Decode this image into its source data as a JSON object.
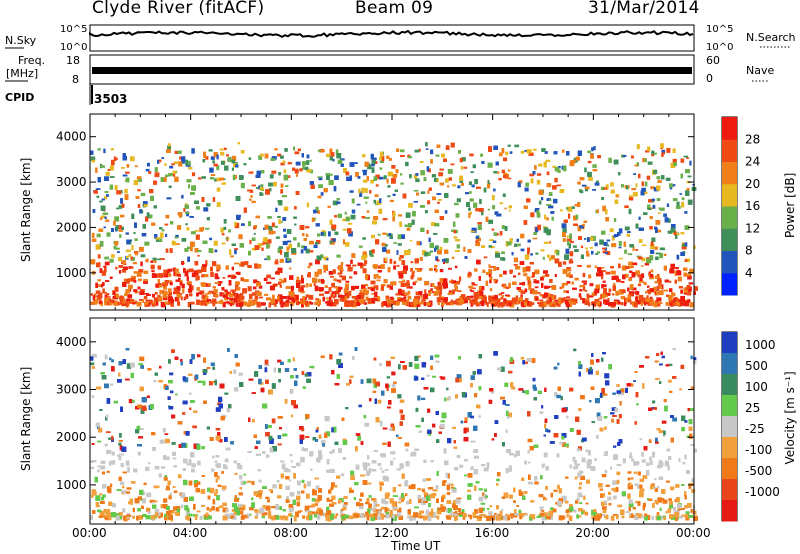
{
  "header": {
    "station": "Clyde River (fitACF)",
    "beam": "Beam 09",
    "date": "31/Mar/2014"
  },
  "top_panels": {
    "nsky_label": "N.Sky",
    "nsky_ticks": [
      "10^5",
      "10^0"
    ],
    "nsearch_label": "N.Search",
    "nsearch_ticks": [
      "10^5",
      "10^0"
    ],
    "freq_label_1": "Freq.",
    "freq_label_2": "[MHz]",
    "freq_ticks": [
      "18",
      "8"
    ],
    "nave_label": "Nave",
    "nave_ticks": [
      "60",
      "0"
    ],
    "cpid_label": "CPID",
    "cpid_value": "3503"
  },
  "chart_data": [
    {
      "type": "heatmap",
      "panel": "power",
      "ylabel": "Slant Range [km]",
      "y_ticks": [
        "1000",
        "2000",
        "3000",
        "4000"
      ],
      "ylim": [
        180,
        4500
      ],
      "colorbar_label": "Power [dB]",
      "colorbar_ticks": [
        "4",
        "8",
        "12",
        "16",
        "20",
        "24",
        "28"
      ],
      "colorbar_colors": [
        "#0022ff",
        "#2255bb",
        "#3f8f5a",
        "#6ab04a",
        "#e8b820",
        "#f07f1a",
        "#f04a14",
        "#ee1a0e"
      ]
    },
    {
      "type": "heatmap",
      "panel": "velocity",
      "ylabel": "Slant Range [km]",
      "y_ticks": [
        "1000",
        "2000",
        "3000",
        "4000"
      ],
      "ylim": [
        180,
        4500
      ],
      "colorbar_label": "Velocity [m s⁻¹]",
      "colorbar_ticks": [
        "1000",
        "500",
        "100",
        "25",
        "-25",
        "-100",
        "-500",
        "-1000"
      ],
      "colorbar_colors": [
        "#1f3fc0",
        "#2f77b3",
        "#3a8a5f",
        "#62c94a",
        "#c8c8c8",
        "#f2a03c",
        "#f07a1a",
        "#e8461a",
        "#e61a14"
      ]
    }
  ],
  "x_axis": {
    "label": "Time UT",
    "ticks": [
      "00:00",
      "04:00",
      "08:00",
      "12:00",
      "16:00",
      "20:00",
      "00:00"
    ]
  }
}
